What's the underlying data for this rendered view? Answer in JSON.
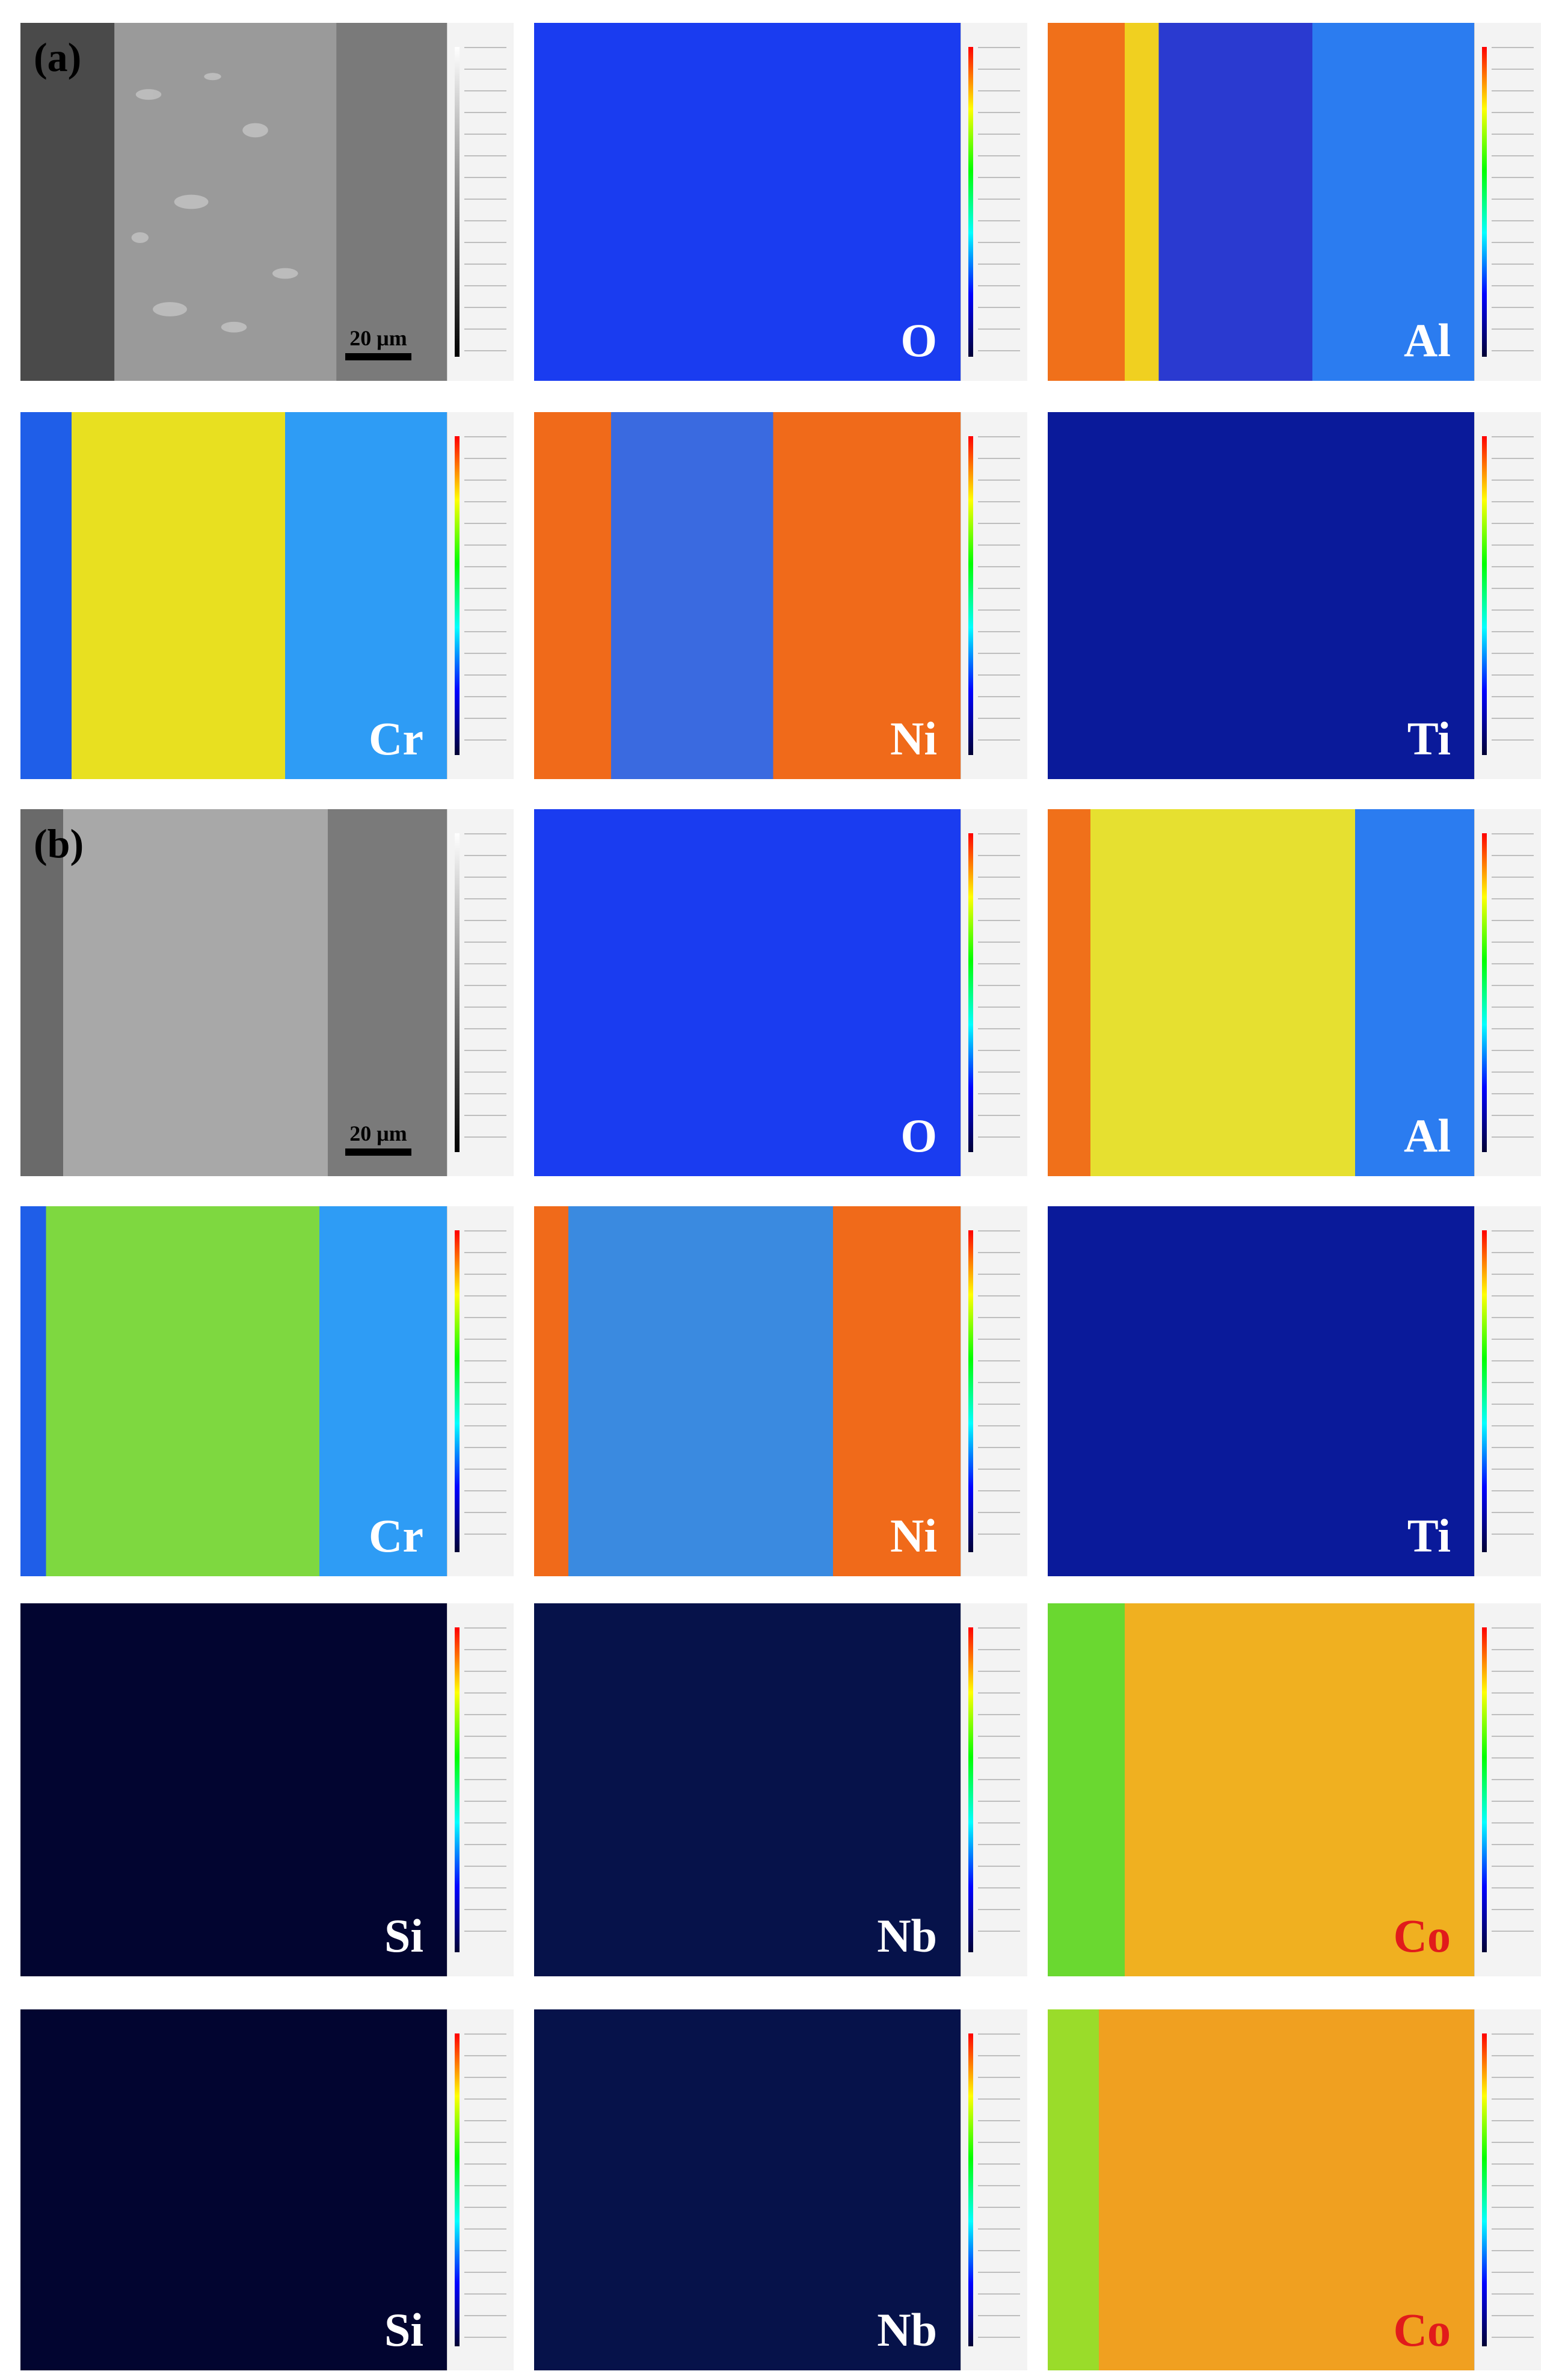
{
  "figure": {
    "labels": {
      "a": "(a)",
      "b": "(b)"
    },
    "scale_bar": "20 μm",
    "panels": {
      "a_bse": {
        "element": ""
      },
      "a_o": {
        "element": "O"
      },
      "a_al": {
        "element": "Al"
      },
      "a_cr": {
        "element": "Cr"
      },
      "a_ni": {
        "element": "Ni"
      },
      "a_ti": {
        "element": "Ti"
      },
      "b_bse": {
        "element": ""
      },
      "b_o": {
        "element": "O"
      },
      "b_al": {
        "element": "Al"
      },
      "b_cr": {
        "element": "Cr"
      },
      "b_ni": {
        "element": "Ni"
      },
      "b_ti": {
        "element": "Ti"
      },
      "a_si": {
        "element": "Si"
      },
      "a_nb": {
        "element": "Nb"
      },
      "a_co": {
        "element": "Co"
      },
      "b_si": {
        "element": "Si"
      },
      "b_nb": {
        "element": "Nb"
      },
      "b_co": {
        "element": "Co"
      }
    }
  },
  "colors": {
    "bse": "#8a8a8a",
    "o_map": "#1a3cf0",
    "al_map": "#2b7cf0",
    "cr_map": "#2e9cf5",
    "ni_map": "#f06a1a",
    "ti_map": "#0a1a9a",
    "si_map": "#020530",
    "nb_map": "#06124a",
    "co_map": "#9adc2a",
    "label_red": "#e11b1b"
  }
}
